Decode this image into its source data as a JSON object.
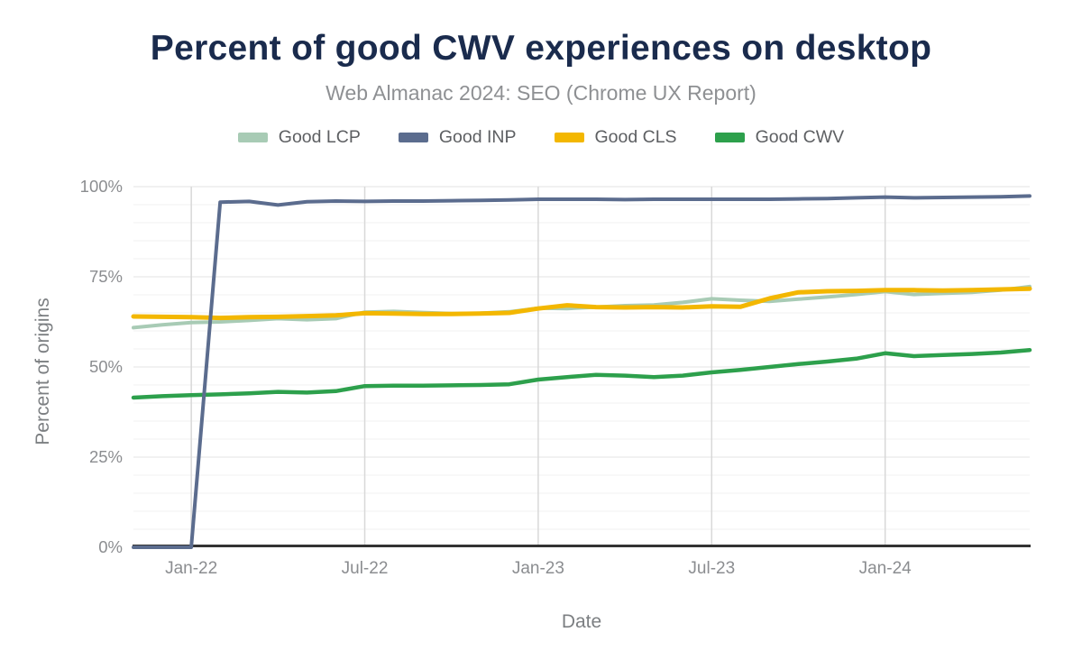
{
  "chart": {
    "title": "Percent of good CWV experiences on desktop",
    "subtitle": "Web Almanac 2024: SEO (Chrome UX Report)",
    "title_color": "#1a2b4d",
    "subtitle_color": "#8e9093"
  },
  "chart_data": {
    "type": "line",
    "title": "Percent of good CWV experiences on desktop",
    "subtitle": "Web Almanac 2024: SEO (Chrome UX Report)",
    "xlabel": "Date",
    "ylabel": "Percent of origins",
    "ylim": [
      0,
      100
    ],
    "grid": "horizontal minor every 5%, major every 25%, vertical at labeled ticks",
    "legend_position": "top",
    "x": [
      "Nov-21",
      "Dec-21",
      "Jan-22",
      "Feb-22",
      "Mar-22",
      "Apr-22",
      "May-22",
      "Jun-22",
      "Jul-22",
      "Aug-22",
      "Sep-22",
      "Oct-22",
      "Nov-22",
      "Dec-22",
      "Jan-23",
      "Feb-23",
      "Mar-23",
      "Apr-23",
      "May-23",
      "Jun-23",
      "Jul-23",
      "Aug-23",
      "Sep-23",
      "Oct-23",
      "Nov-23",
      "Dec-23",
      "Jan-24",
      "Feb-24",
      "Mar-24",
      "Apr-24",
      "May-24",
      "Jun-24"
    ],
    "x_ticks": [
      {
        "index": 2,
        "label": "Jan-22"
      },
      {
        "index": 8,
        "label": "Jul-22"
      },
      {
        "index": 14,
        "label": "Jan-23"
      },
      {
        "index": 20,
        "label": "Jul-23"
      },
      {
        "index": 26,
        "label": "Jan-24"
      }
    ],
    "y_ticks": [
      {
        "value": 0,
        "label": "0%"
      },
      {
        "value": 25,
        "label": "25%"
      },
      {
        "value": 50,
        "label": "50%"
      },
      {
        "value": 75,
        "label": "75%"
      },
      {
        "value": 100,
        "label": "100%"
      }
    ],
    "series": [
      {
        "name": "Good LCP",
        "color": "#a8cbb5",
        "values": [
          60.9,
          61.7,
          62.3,
          62.5,
          62.9,
          63.4,
          63.1,
          63.4,
          65.2,
          65.4,
          65.1,
          64.8,
          64.9,
          65.3,
          66.3,
          66.2,
          66.6,
          67.0,
          67.2,
          67.9,
          68.9,
          68.5,
          68.2,
          68.8,
          69.4,
          70.1,
          70.9,
          70.1,
          70.4,
          70.7,
          71.3,
          72.3
        ]
      },
      {
        "name": "Good INP",
        "color": "#5b6c8e",
        "values": [
          0,
          0,
          0,
          95.7,
          95.9,
          94.9,
          95.8,
          96.0,
          95.9,
          96.0,
          96.0,
          96.1,
          96.2,
          96.3,
          96.5,
          96.5,
          96.5,
          96.4,
          96.5,
          96.5,
          96.5,
          96.5,
          96.5,
          96.6,
          96.7,
          96.9,
          97.1,
          96.9,
          97.0,
          97.1,
          97.2,
          97.4
        ]
      },
      {
        "name": "Good CLS",
        "color": "#f3b700",
        "values": [
          64.0,
          63.9,
          63.8,
          63.6,
          63.8,
          63.9,
          64.1,
          64.3,
          64.9,
          64.8,
          64.7,
          64.7,
          64.8,
          65.0,
          66.2,
          67.1,
          66.6,
          66.5,
          66.6,
          66.5,
          66.8,
          66.7,
          69.0,
          70.7,
          71.0,
          71.1,
          71.3,
          71.3,
          71.2,
          71.3,
          71.5,
          71.7
        ]
      },
      {
        "name": "Good CWV",
        "color": "#2da04c",
        "values": [
          41.5,
          41.9,
          42.2,
          42.4,
          42.7,
          43.1,
          42.9,
          43.3,
          44.7,
          44.8,
          44.8,
          44.9,
          45.0,
          45.2,
          46.5,
          47.2,
          47.8,
          47.6,
          47.2,
          47.6,
          48.5,
          49.2,
          50.0,
          50.8,
          51.5,
          52.3,
          53.8,
          53.0,
          53.3,
          53.6,
          54.0,
          54.7
        ]
      }
    ]
  }
}
